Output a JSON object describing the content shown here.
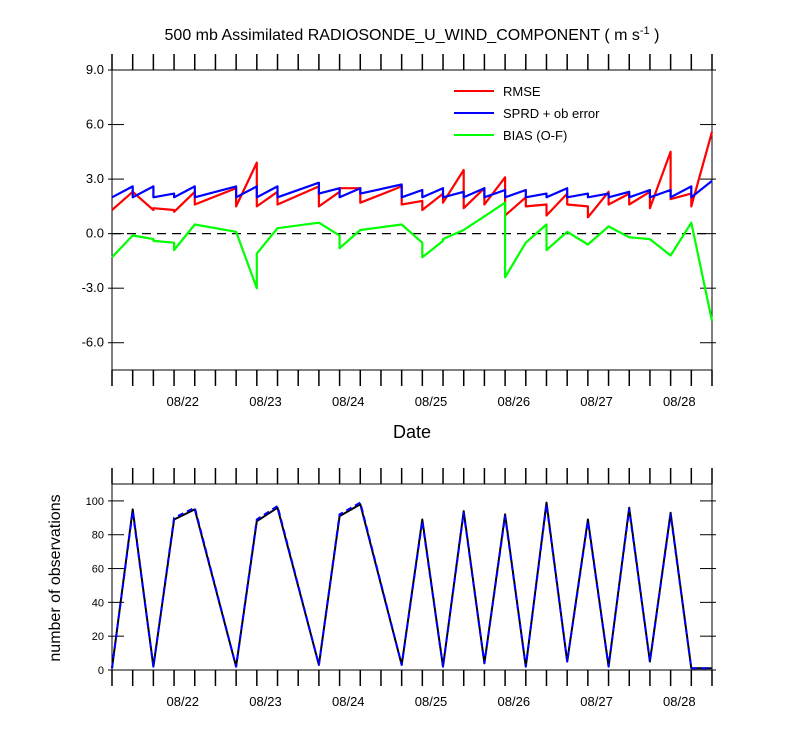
{
  "chart_data": [
    {
      "type": "line",
      "title_main": "500 mb Assimilated RADIOSONDE_U_WIND_COMPONENT ( m s",
      "title_sup": "-1",
      "title_end": " )",
      "xlabel": "Date",
      "ylabel": "",
      "ylim": [
        -7.5,
        9.0
      ],
      "yticks": [
        9.0,
        6.0,
        3.0,
        0.0,
        -3.0,
        -6.0
      ],
      "ytick_labels": [
        "9.0",
        "6.0",
        "3.0",
        "0.0",
        "-3.0",
        "-6.0"
      ],
      "xlim": [
        21.0,
        28.25
      ],
      "xticks": [
        22,
        23,
        24,
        25,
        26,
        27,
        28
      ],
      "xtick_labels": [
        "08/22",
        "08/23",
        "08/24",
        "08/25",
        "08/26",
        "08/27",
        "08/28"
      ],
      "zero_line": true,
      "legend_position": "top-right",
      "series": [
        {
          "name": "RMSE",
          "color": "#ff0000",
          "x": [
            21.0,
            21.25,
            21.5,
            21.5,
            21.75,
            21.75,
            22.0,
            22.0,
            22.5,
            22.5,
            22.75,
            22.75,
            23.0,
            23.0,
            23.5,
            23.5,
            23.75,
            23.75,
            24.0,
            24.0,
            24.5,
            24.5,
            24.75,
            24.75,
            25.0,
            25.0,
            25.25,
            25.25,
            25.5,
            25.5,
            25.75,
            25.75,
            26.0,
            26.0,
            26.25,
            26.25,
            26.5,
            26.5,
            26.75,
            26.75,
            27.0,
            27.0,
            27.25,
            27.25,
            27.5,
            27.5,
            27.75,
            27.75,
            28.0,
            28.0,
            28.25
          ],
          "values": [
            1.3,
            2.3,
            1.3,
            1.4,
            1.3,
            1.2,
            2.3,
            1.6,
            2.5,
            1.5,
            3.9,
            1.5,
            2.3,
            1.6,
            2.6,
            1.5,
            2.3,
            2.5,
            2.5,
            1.7,
            2.6,
            1.6,
            1.8,
            1.3,
            2.2,
            1.7,
            3.5,
            1.4,
            2.5,
            1.6,
            3.1,
            1.0,
            2.0,
            1.5,
            1.6,
            1.0,
            2.2,
            1.6,
            1.5,
            0.9,
            2.3,
            1.6,
            2.2,
            1.6,
            2.3,
            1.4,
            4.5,
            1.9,
            2.2,
            1.5,
            5.6
          ]
        },
        {
          "name": "SPRD + ob error",
          "color": "#0000ff",
          "x": [
            21.0,
            21.25,
            21.25,
            21.5,
            21.5,
            21.75,
            21.75,
            22.0,
            22.0,
            22.5,
            22.5,
            22.75,
            22.75,
            23.0,
            23.0,
            23.5,
            23.5,
            23.75,
            23.75,
            24.0,
            24.0,
            24.5,
            24.5,
            24.75,
            24.75,
            25.0,
            25.0,
            25.25,
            25.25,
            25.5,
            25.5,
            25.75,
            25.75,
            26.0,
            26.0,
            26.25,
            26.25,
            26.5,
            26.5,
            26.75,
            26.75,
            27.0,
            27.0,
            27.25,
            27.25,
            27.5,
            27.5,
            27.75,
            27.75,
            28.0,
            28.0,
            28.25
          ],
          "values": [
            2.0,
            2.6,
            2.0,
            2.6,
            2.0,
            2.2,
            2.0,
            2.6,
            2.0,
            2.6,
            2.0,
            2.6,
            2.0,
            2.6,
            2.0,
            2.8,
            2.2,
            2.5,
            2.0,
            2.5,
            2.2,
            2.7,
            2.0,
            2.4,
            2.0,
            2.5,
            2.0,
            2.3,
            2.0,
            2.5,
            2.0,
            2.4,
            2.0,
            2.4,
            2.0,
            2.2,
            2.0,
            2.5,
            2.0,
            2.2,
            2.0,
            2.2,
            2.0,
            2.3,
            2.0,
            2.4,
            2.0,
            2.4,
            2.0,
            2.6,
            2.0,
            2.9
          ]
        },
        {
          "name": "BIAS (O-F)",
          "color": "#00ff00",
          "x": [
            21.0,
            21.25,
            21.5,
            21.5,
            21.75,
            21.75,
            22.0,
            22.5,
            22.75,
            22.75,
            23.0,
            23.5,
            23.75,
            23.75,
            24.0,
            24.5,
            24.75,
            24.75,
            25.0,
            25.0,
            25.25,
            25.75,
            25.75,
            26.0,
            26.25,
            26.25,
            26.5,
            26.75,
            27.0,
            27.25,
            27.5,
            27.75,
            28.0,
            28.25
          ],
          "values": [
            -1.3,
            -0.1,
            -0.3,
            -0.4,
            -0.5,
            -0.9,
            0.5,
            0.1,
            -3.0,
            -1.1,
            0.3,
            0.6,
            -0.1,
            -0.8,
            0.2,
            0.5,
            -0.5,
            -1.3,
            -0.4,
            -0.3,
            0.2,
            1.7,
            -2.4,
            -0.5,
            0.5,
            -0.9,
            0.1,
            -0.6,
            0.4,
            -0.2,
            -0.3,
            -1.2,
            0.6,
            -4.8
          ]
        }
      ]
    },
    {
      "type": "line",
      "title": "",
      "xlabel": "",
      "ylabel": "number of observations",
      "ylim": [
        0,
        110
      ],
      "yticks": [
        0,
        20,
        40,
        60,
        80,
        100
      ],
      "ytick_labels": [
        "0",
        "20",
        "40",
        "60",
        "80",
        "100"
      ],
      "xlim": [
        21.0,
        28.25
      ],
      "xticks": [
        22,
        23,
        24,
        25,
        26,
        27,
        28
      ],
      "xtick_labels": [
        "08/22",
        "08/23",
        "08/24",
        "08/25",
        "08/26",
        "08/27",
        "08/28"
      ],
      "series": [
        {
          "color": "#000000",
          "dash": false,
          "x": [
            21.0,
            21.25,
            21.5,
            21.75,
            22.0,
            22.5,
            22.75,
            23.0,
            23.5,
            23.75,
            24.0,
            24.5,
            24.75,
            25.0,
            25.25,
            25.5,
            25.75,
            26.0,
            26.25,
            26.5,
            26.75,
            27.0,
            27.25,
            27.5,
            27.75,
            28.0,
            28.25
          ],
          "values": [
            1,
            95,
            2,
            89,
            95,
            2,
            88,
            96,
            3,
            91,
            98,
            3,
            89,
            2,
            94,
            4,
            92,
            2,
            99,
            5,
            89,
            2,
            96,
            5,
            93,
            1,
            1
          ]
        },
        {
          "color": "#0000ff",
          "dash": true,
          "x": [
            21.0,
            21.25,
            21.5,
            21.75,
            22.0,
            22.5,
            22.75,
            23.0,
            23.5,
            23.75,
            24.0,
            24.5,
            24.75,
            25.0,
            25.25,
            25.5,
            25.75,
            26.0,
            26.25,
            26.5,
            26.75,
            27.0,
            27.25,
            27.5,
            27.75,
            28.0,
            28.25
          ],
          "values": [
            1,
            94,
            2,
            90,
            96,
            2,
            89,
            97,
            3,
            92,
            99,
            3,
            88,
            2,
            93,
            4,
            91,
            2,
            98,
            5,
            88,
            2,
            95,
            5,
            92,
            1,
            1
          ]
        }
      ]
    }
  ]
}
